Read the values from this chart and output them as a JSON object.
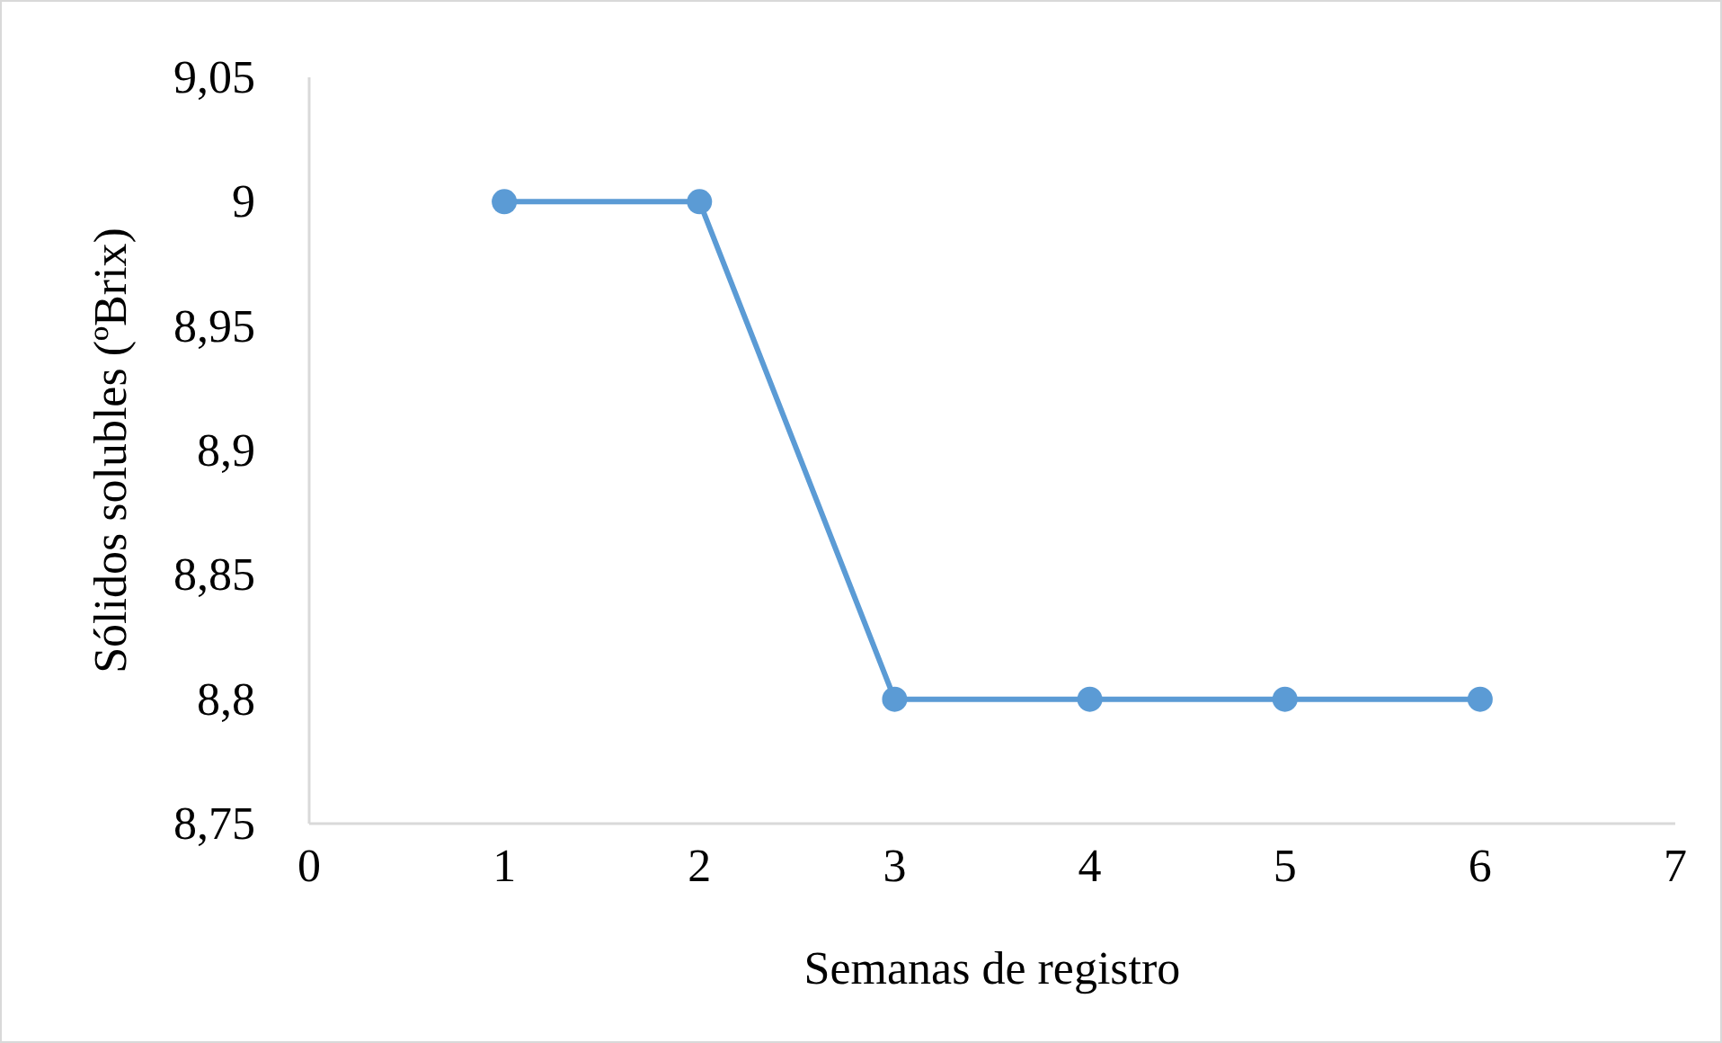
{
  "chart_data": {
    "type": "line",
    "xlabel": "Semanas de registro",
    "ylabel": "Sólidos solubles (ºBrix)",
    "x": [
      1,
      2,
      3,
      4,
      5,
      6
    ],
    "series": [
      {
        "color": "#5b9bd5",
        "values": [
          9,
          9,
          8.8,
          8.8,
          8.8,
          8.8
        ]
      }
    ],
    "xlim": [
      0,
      7
    ],
    "xticks": [
      0,
      1,
      2,
      3,
      4,
      5,
      6,
      7
    ],
    "ylim": [
      8.75,
      9.05
    ],
    "yticks": [
      {
        "value": 8.75,
        "label": "8,75"
      },
      {
        "value": 8.8,
        "label": "8,8"
      },
      {
        "value": 8.85,
        "label": "8,85"
      },
      {
        "value": 8.9,
        "label": "8,9"
      },
      {
        "value": 8.95,
        "label": "8,95"
      },
      {
        "value": 9,
        "label": "9"
      },
      {
        "value": 9.05,
        "label": "9,05"
      }
    ],
    "grid": false,
    "marker": "circle",
    "line_style": "solid"
  }
}
